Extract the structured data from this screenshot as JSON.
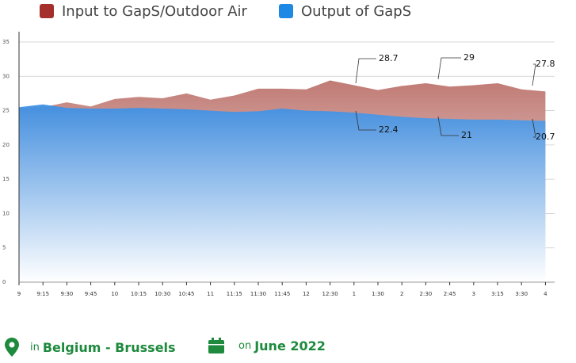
{
  "chart_data": {
    "type": "area",
    "categories": [
      "9",
      "9:15",
      "9:30",
      "9:45",
      "10",
      "10:15",
      "10:30",
      "10:45",
      "11",
      "11:15",
      "11:30",
      "11:45",
      "12",
      "12:30",
      "1",
      "1:30",
      "2",
      "2:30",
      "2:45",
      "3",
      "3:15",
      "3:30",
      "4"
    ],
    "series": [
      {
        "name": "Input to GapS/Outdoor Air",
        "color": "#a52f2c",
        "values": [
          25.3,
          25.5,
          26.2,
          25.6,
          26.7,
          27.0,
          26.8,
          27.5,
          26.6,
          27.2,
          28.2,
          28.2,
          28.1,
          29.4,
          28.7,
          28.0,
          28.6,
          29.0,
          28.5,
          28.7,
          29.0,
          28.1,
          27.8
        ]
      },
      {
        "name": "Output of GapS",
        "color": "#1e88e5",
        "values": [
          25.5,
          25.9,
          25.4,
          25.3,
          25.3,
          25.4,
          25.3,
          25.2,
          25.0,
          24.8,
          24.9,
          25.3,
          25.0,
          24.9,
          24.7,
          24.4,
          24.1,
          23.9,
          23.8,
          23.7,
          23.7,
          23.6,
          23.5
        ]
      }
    ],
    "ylim": [
      0,
      35
    ],
    "yticks": [
      0,
      5,
      10,
      15,
      20,
      25,
      30,
      35
    ],
    "grid": true,
    "annotations": [
      "28.7",
      "22.4",
      "29",
      "21",
      "27.8",
      "20.7"
    ]
  },
  "footer": {
    "location_prefix": "in",
    "location": "Belgium - Brussels",
    "date_prefix": "on",
    "date": "June 2022"
  }
}
